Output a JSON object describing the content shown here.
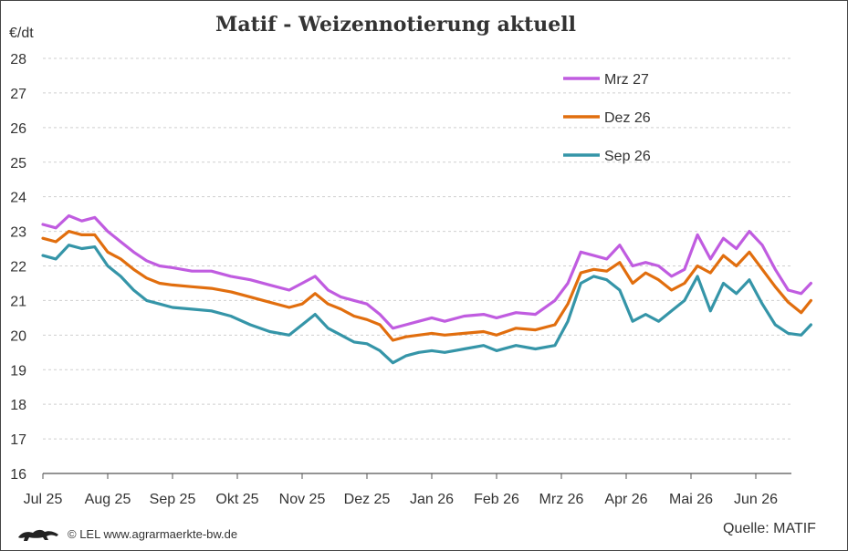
{
  "footer": {
    "credit": "© LEL www.agrarmaerkte-bw.de",
    "source": "Quelle: MATIF"
  },
  "chart_data": {
    "type": "line",
    "title": "Matif - Weizennotierung aktuell",
    "ylabel": "€/dt",
    "xlabel": "",
    "ylim": [
      16,
      28
    ],
    "yticks": [
      16,
      17,
      18,
      19,
      20,
      21,
      22,
      23,
      24,
      25,
      26,
      27,
      28
    ],
    "xlim": [
      0,
      12.5
    ],
    "xtick_labels": [
      "Jul 25",
      "Aug 25",
      "Sep 25",
      "Okt 25",
      "Nov 25",
      "Dez 25",
      "Jan 26",
      "Feb 26",
      "Mrz 26",
      "Apr 26",
      "Mai 26",
      "Jun 26"
    ],
    "grid": "horizontal dashed",
    "legend": "top-right",
    "x": [
      0.0,
      0.2,
      0.4,
      0.6,
      0.8,
      1.0,
      1.2,
      1.4,
      1.6,
      1.8,
      2.0,
      2.3,
      2.6,
      2.9,
      3.2,
      3.5,
      3.8,
      4.0,
      4.2,
      4.4,
      4.6,
      4.8,
      5.0,
      5.2,
      5.4,
      5.6,
      5.8,
      6.0,
      6.2,
      6.5,
      6.8,
      7.0,
      7.3,
      7.6,
      7.9,
      8.1,
      8.3,
      8.5,
      8.7,
      8.9,
      9.1,
      9.3,
      9.5,
      9.7,
      9.9,
      10.1,
      10.3,
      10.5,
      10.7,
      10.9,
      11.1,
      11.3,
      11.5,
      11.7,
      11.85
    ],
    "series": [
      {
        "name": "Mrz 27",
        "color": "#c05ce0",
        "values": [
          23.2,
          23.1,
          23.45,
          23.3,
          23.4,
          23.0,
          22.7,
          22.4,
          22.15,
          22.0,
          21.95,
          21.85,
          21.85,
          21.7,
          21.6,
          21.45,
          21.3,
          21.5,
          21.7,
          21.3,
          21.1,
          21.0,
          20.9,
          20.6,
          20.2,
          20.3,
          20.4,
          20.5,
          20.4,
          20.55,
          20.6,
          20.5,
          20.65,
          20.6,
          21.0,
          21.5,
          22.4,
          22.3,
          22.2,
          22.6,
          22.0,
          22.1,
          22.0,
          21.7,
          21.9,
          22.9,
          22.2,
          22.8,
          22.5,
          23.0,
          22.6,
          21.9,
          21.3,
          21.2,
          21.5
        ]
      },
      {
        "name": "Dez 26",
        "color": "#e16e0e",
        "values": [
          22.8,
          22.7,
          23.0,
          22.9,
          22.9,
          22.4,
          22.2,
          21.9,
          21.65,
          21.5,
          21.45,
          21.4,
          21.35,
          21.25,
          21.1,
          20.95,
          20.8,
          20.9,
          21.2,
          20.9,
          20.75,
          20.55,
          20.45,
          20.3,
          19.85,
          19.95,
          20.0,
          20.05,
          20.0,
          20.05,
          20.1,
          20.0,
          20.2,
          20.15,
          20.3,
          20.9,
          21.8,
          21.9,
          21.85,
          22.1,
          21.5,
          21.8,
          21.6,
          21.3,
          21.5,
          22.0,
          21.8,
          22.3,
          22.0,
          22.4,
          21.9,
          21.4,
          20.95,
          20.65,
          21.0
        ]
      },
      {
        "name": "Sep 26",
        "color": "#3595a8",
        "values": [
          22.3,
          22.2,
          22.6,
          22.5,
          22.55,
          22.0,
          21.7,
          21.3,
          21.0,
          20.9,
          20.8,
          20.75,
          20.7,
          20.55,
          20.3,
          20.1,
          20.0,
          20.3,
          20.6,
          20.2,
          20.0,
          19.8,
          19.75,
          19.55,
          19.2,
          19.4,
          19.5,
          19.55,
          19.5,
          19.6,
          19.7,
          19.55,
          19.7,
          19.6,
          19.7,
          20.4,
          21.5,
          21.7,
          21.6,
          21.3,
          20.4,
          20.6,
          20.4,
          20.7,
          21.0,
          21.7,
          20.7,
          21.5,
          21.2,
          21.6,
          20.9,
          20.3,
          20.05,
          20.0,
          20.3
        ]
      }
    ]
  }
}
